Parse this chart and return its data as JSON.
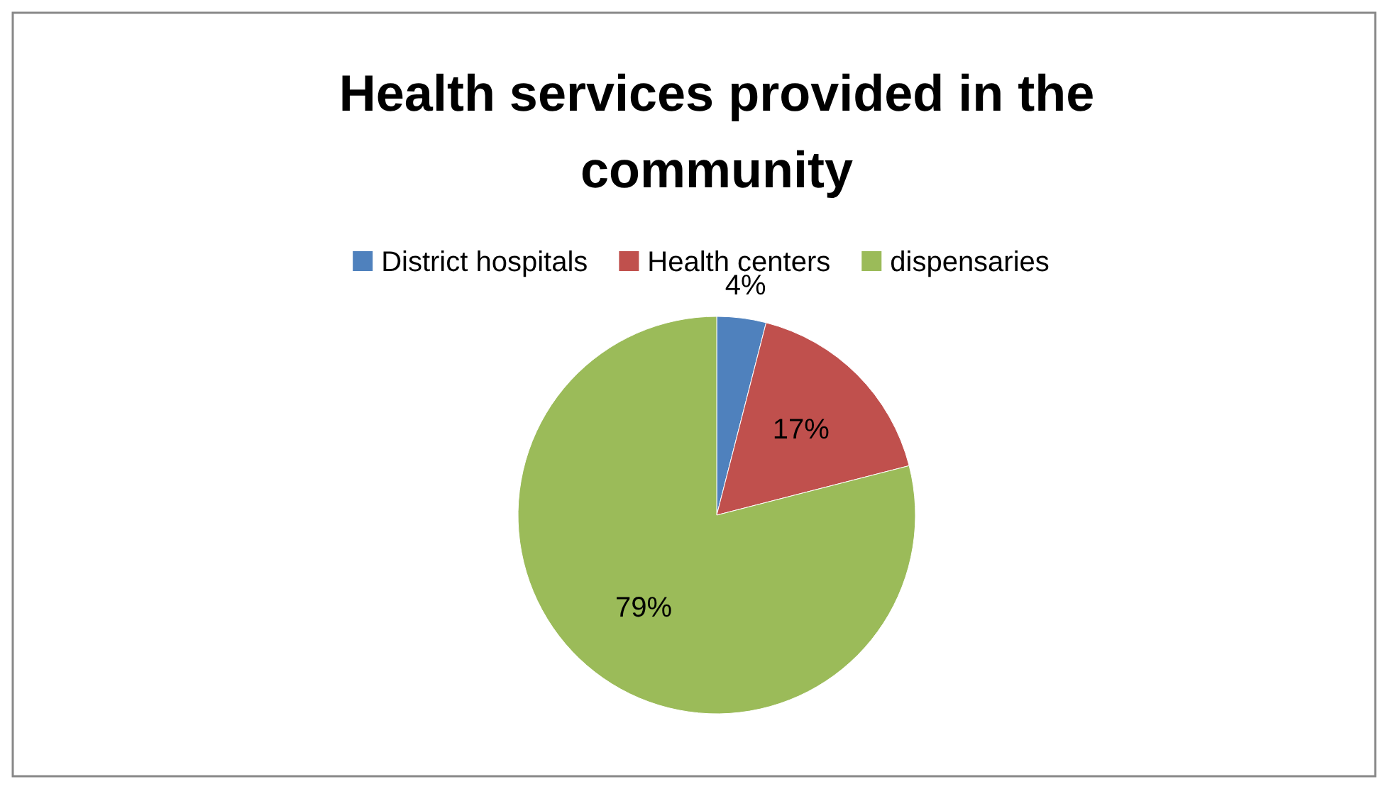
{
  "chart_data": {
    "type": "pie",
    "title": "Health services provided in  the community",
    "categories": [
      "District hospitals",
      "Health centers",
      "dispensaries"
    ],
    "values": [
      4,
      17,
      79
    ],
    "colors": [
      "#4f81bd",
      "#c0504d",
      "#9bbb59"
    ],
    "value_labels": [
      "4%",
      "17%",
      "79%"
    ],
    "legend": "top"
  }
}
